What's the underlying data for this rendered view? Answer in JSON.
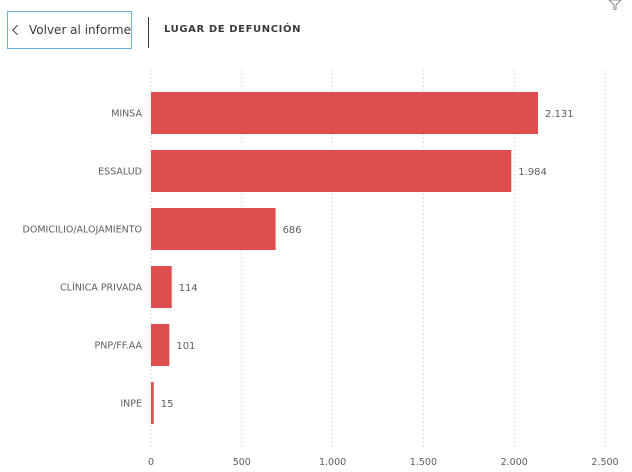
{
  "header": {
    "back_label": "Volver al informe",
    "title": "LUGAR DE DEFUNCIÓN"
  },
  "icons": {
    "back": "chevron-left-icon",
    "filter": "filter-icon"
  },
  "colors": {
    "bar": "#de4e4e",
    "accent_border": "#62b5e5"
  },
  "chart_data": {
    "type": "bar",
    "orientation": "horizontal",
    "title": "LUGAR DE DEFUNCIÓN",
    "categories": [
      "MINSA",
      "ESSALUD",
      "DOMICILIO/ALOJAMIENTO",
      "CLÍNICA PRIVADA",
      "PNP/FF.AA",
      "INPE"
    ],
    "values": [
      2131,
      1984,
      686,
      114,
      101,
      15
    ],
    "value_labels": [
      "2.131",
      "1.984",
      "686",
      "114",
      "101",
      "15"
    ],
    "xlim": [
      0,
      2500
    ],
    "ticks": [
      0,
      500,
      1000,
      1500,
      2000,
      2500
    ],
    "tick_labels": [
      "0",
      "500",
      "1.000",
      "1.500",
      "2.000",
      "2.500"
    ],
    "grid": true,
    "xlabel": "",
    "ylabel": ""
  }
}
